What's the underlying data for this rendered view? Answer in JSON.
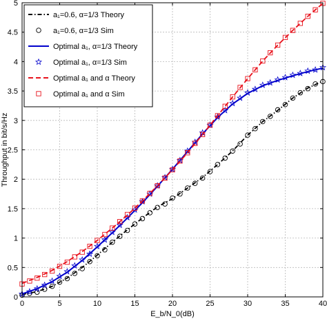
{
  "chart_data": {
    "type": "line",
    "xlabel": "E_b/N_0(dB)",
    "ylabel": "Throughput in bit/s/Hz",
    "xlim": [
      0,
      40
    ],
    "ylim": [
      0,
      5
    ],
    "xticks": [
      "0",
      "5",
      "10",
      "15",
      "20",
      "25",
      "30",
      "35",
      "40"
    ],
    "yticks": [
      "0",
      "0.5",
      "1",
      "1.5",
      "2",
      "2.5",
      "3",
      "3.5",
      "4",
      "4.5",
      "5"
    ],
    "grid": true,
    "legend_position": "top-left",
    "series": [
      {
        "name": "a1=0.6, α=1/3 Theory",
        "legend_label": "a₁=0.6, α=1/3 Theory",
        "style": "dashdot",
        "color": "#000000",
        "marker": "none",
        "x": [
          0,
          2,
          4,
          6,
          8,
          10,
          12,
          14,
          16,
          18,
          20,
          22,
          24,
          26,
          28,
          30,
          32,
          34,
          36,
          38,
          40
        ],
        "y": [
          0.04,
          0.09,
          0.18,
          0.32,
          0.5,
          0.71,
          0.93,
          1.14,
          1.34,
          1.53,
          1.67,
          1.85,
          2.03,
          2.25,
          2.48,
          2.75,
          2.98,
          3.17,
          3.38,
          3.55,
          3.67
        ]
      },
      {
        "name": "a1=0.6, α=1/3 Sim",
        "legend_label": "a₁=0.6, α=1/3 Sim",
        "style": "none",
        "color": "#000000",
        "marker": "circle",
        "x": [
          0,
          1,
          2,
          3,
          4,
          5,
          6,
          7,
          8,
          9,
          10,
          11,
          12,
          13,
          14,
          15,
          16,
          17,
          18,
          19,
          20,
          21,
          22,
          23,
          24,
          25,
          26,
          27,
          28,
          29,
          30,
          31,
          32,
          33,
          34,
          35,
          36,
          37,
          38,
          39,
          40
        ],
        "y": [
          0.03,
          0.06,
          0.08,
          0.13,
          0.18,
          0.25,
          0.31,
          0.4,
          0.48,
          0.6,
          0.7,
          0.8,
          0.93,
          1.03,
          1.13,
          1.24,
          1.33,
          1.43,
          1.52,
          1.58,
          1.68,
          1.75,
          1.85,
          1.93,
          2.02,
          2.13,
          2.25,
          2.36,
          2.48,
          2.6,
          2.75,
          2.86,
          2.98,
          3.07,
          3.18,
          3.27,
          3.38,
          3.47,
          3.54,
          3.62,
          3.66
        ]
      },
      {
        "name": "Optimal a1, α=1/3 Theory",
        "legend_label": "Optimal a₁, α=1/3 Theory",
        "style": "solid",
        "color": "#0000cc",
        "marker": "none",
        "x": [
          0,
          2,
          4,
          6,
          8,
          10,
          12,
          14,
          16,
          18,
          20,
          22,
          24,
          26,
          28,
          30,
          32,
          34,
          36,
          38,
          40
        ],
        "y": [
          0.05,
          0.14,
          0.26,
          0.42,
          0.62,
          0.85,
          1.09,
          1.34,
          1.6,
          1.88,
          2.17,
          2.47,
          2.77,
          3.05,
          3.28,
          3.46,
          3.59,
          3.68,
          3.76,
          3.83,
          3.89
        ]
      },
      {
        "name": "Optimal a1, α=1/3 Sim",
        "legend_label": "Optimal a₁, α=1/3 Sim",
        "style": "none",
        "color": "#0000cc",
        "marker": "star",
        "x": [
          0,
          1,
          2,
          3,
          4,
          5,
          6,
          7,
          8,
          9,
          10,
          11,
          12,
          13,
          14,
          15,
          16,
          17,
          18,
          19,
          20,
          21,
          22,
          23,
          24,
          25,
          26,
          27,
          28,
          29,
          30,
          31,
          32,
          33,
          34,
          35,
          36,
          37,
          38,
          39,
          40
        ],
        "y": [
          0.05,
          0.09,
          0.14,
          0.2,
          0.27,
          0.35,
          0.43,
          0.53,
          0.63,
          0.73,
          0.86,
          0.97,
          1.1,
          1.22,
          1.35,
          1.48,
          1.62,
          1.75,
          1.89,
          2.03,
          2.17,
          2.32,
          2.48,
          2.63,
          2.79,
          2.92,
          3.06,
          3.17,
          3.29,
          3.38,
          3.47,
          3.53,
          3.6,
          3.64,
          3.69,
          3.73,
          3.77,
          3.8,
          3.84,
          3.86,
          3.9
        ]
      },
      {
        "name": "Optimal a1 and α Theory",
        "legend_label": "Optimal a₁ and α Theory",
        "style": "dashed",
        "color": "#e8111b",
        "marker": "none",
        "x": [
          0,
          2,
          4,
          6,
          8,
          10,
          12,
          14,
          16,
          18,
          20,
          22,
          24,
          26,
          28,
          30,
          32,
          34,
          36,
          38,
          40
        ],
        "y": [
          0.23,
          0.33,
          0.45,
          0.6,
          0.77,
          0.96,
          1.17,
          1.39,
          1.63,
          1.89,
          2.16,
          2.45,
          2.76,
          3.08,
          3.4,
          3.71,
          4.01,
          4.28,
          4.53,
          4.77,
          4.99
        ]
      },
      {
        "name": "Optimal a1 and α Sim",
        "legend_label": "Optimal a₁ and α Sim",
        "style": "none",
        "color": "#e8111b",
        "marker": "square",
        "x": [
          0,
          1,
          2,
          3,
          4,
          5,
          6,
          7,
          8,
          9,
          10,
          11,
          12,
          13,
          14,
          15,
          16,
          17,
          18,
          19,
          20,
          21,
          22,
          23,
          24,
          25,
          26,
          27,
          28,
          29,
          30,
          31,
          32,
          33,
          34,
          35,
          36,
          37,
          38,
          39,
          40
        ],
        "y": [
          0.22,
          0.27,
          0.32,
          0.38,
          0.44,
          0.52,
          0.59,
          0.68,
          0.76,
          0.86,
          0.96,
          1.06,
          1.17,
          1.28,
          1.4,
          1.51,
          1.63,
          1.76,
          1.89,
          2.02,
          2.16,
          2.31,
          2.45,
          2.61,
          2.76,
          2.92,
          3.08,
          3.24,
          3.4,
          3.56,
          3.71,
          3.86,
          4.01,
          4.15,
          4.28,
          4.41,
          4.53,
          4.65,
          4.77,
          4.88,
          4.99
        ]
      }
    ]
  }
}
